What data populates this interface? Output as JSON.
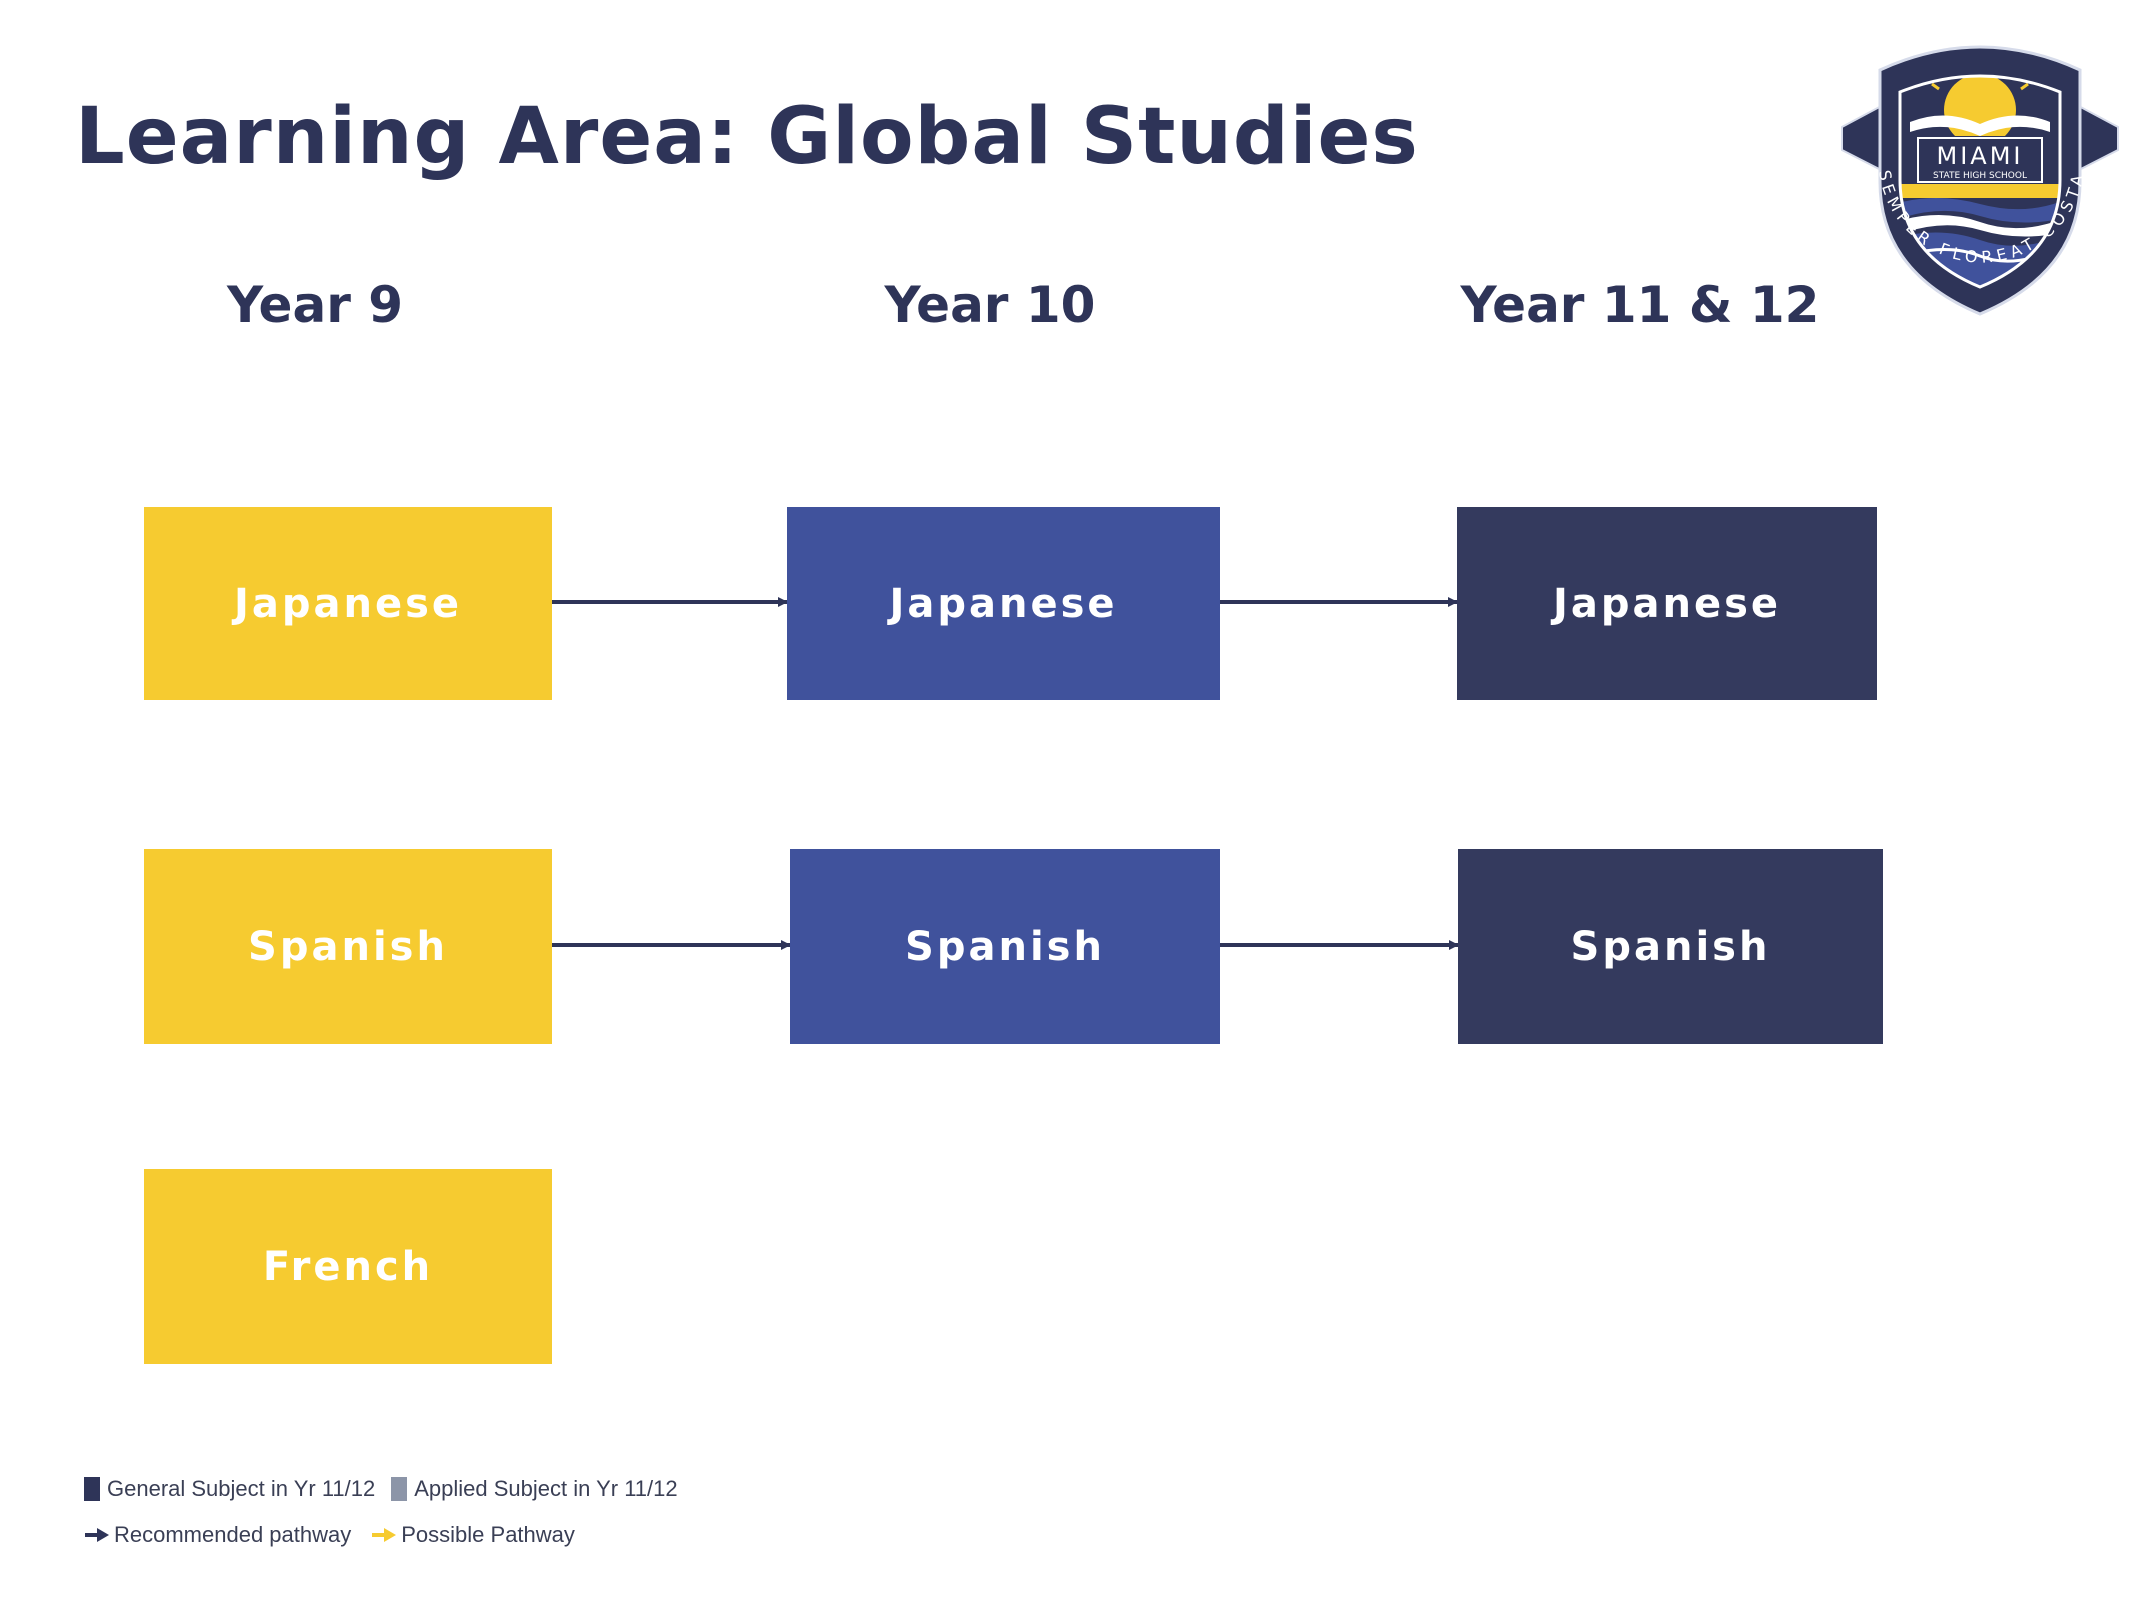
{
  "title": "Learning Area: Global Studies",
  "columns": [
    "Year 9",
    "Year 10",
    "Year 11 & 12"
  ],
  "year9": [
    "Japanese",
    "Spanish",
    "French"
  ],
  "year10": [
    "Japanese",
    "Spanish"
  ],
  "year11_12": [
    "Japanese",
    "Spanish"
  ],
  "logo": {
    "name": "MIAMI",
    "subtitle": "STATE HIGH SCHOOL",
    "motto": "SEMPER FLOREAT COSTA"
  },
  "legend": {
    "general": "General Subject in Yr 11/12",
    "applied": "Applied Subject in Yr 11/12",
    "recommended": "Recommended pathway",
    "possible": "Possible Pathway"
  },
  "colors": {
    "year9": "#f6cb30",
    "year10": "#40529c",
    "year11_12": "#343a5e",
    "recommended_arrow": "#2e3458",
    "possible_arrow": "#f6cb30"
  }
}
